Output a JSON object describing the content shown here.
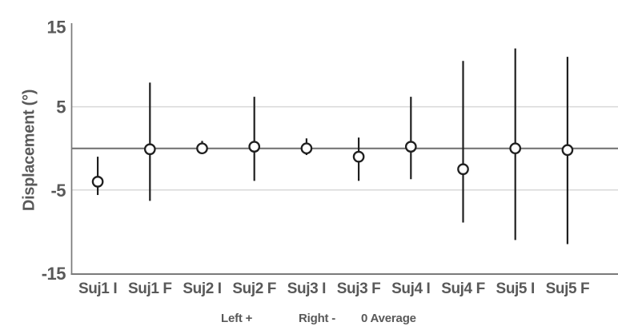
{
  "chart_data": {
    "type": "scatter",
    "title": "",
    "xlabel": "",
    "ylabel": "Displacement (°)",
    "ylim": [
      -15,
      15
    ],
    "yticks": [
      15,
      5,
      -5,
      -15
    ],
    "gridlines_y": [
      5,
      -5
    ],
    "zero_reference_line": 0,
    "grid": "horizontal-only",
    "legend_position": "bottom-caption",
    "legend": [
      "Left +",
      "Right -",
      "0 Average"
    ],
    "categories": [
      "Suj1 I",
      "Suj1 F",
      "Suj2 I",
      "Suj2 F",
      "Suj3 I",
      "Suj3 F",
      "Suj4 I",
      "Suj4 F",
      "Suj5 I",
      "Suj5 F"
    ],
    "series": [
      {
        "name": "Average displacement",
        "marker": "open-circle",
        "values": [
          -4.0,
          -0.1,
          0.0,
          0.2,
          0.0,
          -1.0,
          0.2,
          -2.5,
          0.0,
          -0.2
        ],
        "upper_whisker": [
          -1.0,
          7.9,
          0.9,
          6.2,
          1.2,
          1.3,
          6.2,
          10.5,
          12.0,
          11.0
        ],
        "lower_whisker": [
          -5.6,
          -6.3,
          -0.6,
          -3.9,
          -0.8,
          -3.9,
          -3.7,
          -8.9,
          -11.0,
          -11.5
        ]
      }
    ],
    "colors": {
      "marker": "#1f1f1f",
      "error_bar": "#1f1f1f",
      "axis": "#7a7a7a",
      "zero_line": "#6e6e6e",
      "gridline": "#d8d8d8",
      "text": "#595959",
      "background": "#ffffff"
    }
  }
}
